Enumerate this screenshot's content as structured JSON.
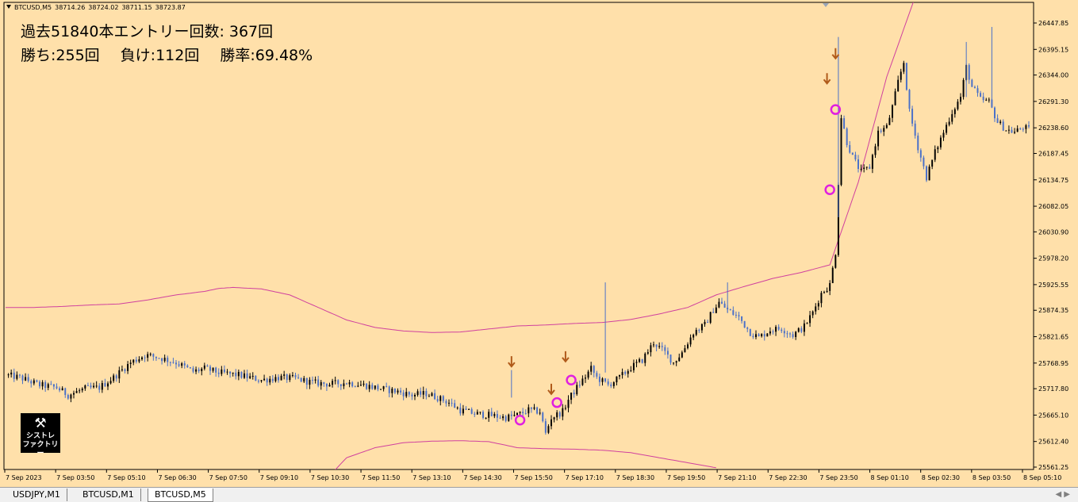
{
  "window": {
    "symbol": "BTCUSD,M5",
    "quotes": [
      "38714.26",
      "38724.02",
      "38711.15",
      "38723.87"
    ]
  },
  "stats": {
    "line1": "過去51840本エントリー回数: 367回",
    "wins": "勝ち:255回",
    "losses": "負け:112回",
    "win_rate": "勝率:69.48%"
  },
  "logo": {
    "line1": "シストレ",
    "line2": "ファクトリー",
    "icon": "wrench-screwdriver-icon"
  },
  "colors": {
    "background": "#ffe0aa",
    "bull_candle": "#000000",
    "bear_candle": "#4a70c8",
    "band": "#d0409e",
    "signal_circle": "#e020e0",
    "signal_arrow": "#b05a1a"
  },
  "tabs": [
    {
      "label": "USDJPY,M1",
      "active": false
    },
    {
      "label": "BTCUSD,M1",
      "active": false
    },
    {
      "label": "BTCUSD,M5",
      "active": true
    }
  ],
  "chart_data": {
    "type": "candlestick",
    "ylim": [
      25540,
      26480
    ],
    "y_ticks": [
      "26447.85",
      "26395.15",
      "26344.00",
      "26291.30",
      "26238.60",
      "26187.45",
      "26134.75",
      "26082.05",
      "26030.90",
      "25978.20",
      "25925.55",
      "25874.35",
      "25821.65",
      "25768.95",
      "25717.80",
      "25665.10",
      "25612.40",
      "25561.25"
    ],
    "x_ticks": [
      "7 Sep 2023",
      "7 Sep 03:50",
      "7 Sep 05:10",
      "7 Sep 06:30",
      "7 Sep 07:50",
      "7 Sep 09:10",
      "7 Sep 10:30",
      "7 Sep 11:50",
      "7 Sep 13:10",
      "7 Sep 14:30",
      "7 Sep 15:50",
      "7 Sep 17:10",
      "7 Sep 18:30",
      "7 Sep 19:50",
      "7 Sep 21:10",
      "7 Sep 22:30",
      "7 Sep 23:50",
      "8 Sep 01:10",
      "8 Sep 02:30",
      "8 Sep 03:50",
      "8 Sep 05:10"
    ],
    "close_path": [
      [
        0,
        25745
      ],
      [
        5,
        25740
      ],
      [
        12,
        25725
      ],
      [
        18,
        25720
      ],
      [
        22,
        25705
      ],
      [
        28,
        25718
      ],
      [
        33,
        25720
      ],
      [
        38,
        25740
      ],
      [
        44,
        25770
      ],
      [
        49,
        25785
      ],
      [
        54,
        25780
      ],
      [
        60,
        25770
      ],
      [
        66,
        25752
      ],
      [
        70,
        25758
      ],
      [
        75,
        25750
      ],
      [
        82,
        25745
      ],
      [
        90,
        25735
      ],
      [
        96,
        25740
      ],
      [
        102,
        25738
      ],
      [
        108,
        25730
      ],
      [
        114,
        25727
      ],
      [
        120,
        25730
      ],
      [
        126,
        25725
      ],
      [
        132,
        25718
      ],
      [
        138,
        25712
      ],
      [
        143,
        25705
      ],
      [
        148,
        25708
      ],
      [
        152,
        25700
      ],
      [
        156,
        25690
      ],
      [
        160,
        25675
      ],
      [
        165,
        25668
      ],
      [
        170,
        25665
      ],
      [
        176,
        25660
      ],
      [
        180,
        25665
      ],
      [
        184,
        25675
      ],
      [
        188,
        25672
      ],
      [
        190,
        25628
      ],
      [
        192,
        25660
      ],
      [
        196,
        25672
      ],
      [
        198,
        25696
      ],
      [
        200,
        25712
      ],
      [
        202,
        25728
      ],
      [
        204,
        25742
      ],
      [
        206,
        25758
      ],
      [
        208,
        25740
      ],
      [
        212,
        25725
      ],
      [
        216,
        25740
      ],
      [
        220,
        25760
      ],
      [
        224,
        25775
      ],
      [
        228,
        25810
      ],
      [
        232,
        25790
      ],
      [
        235,
        25770
      ],
      [
        238,
        25790
      ],
      [
        242,
        25830
      ],
      [
        246,
        25845
      ],
      [
        249,
        25875
      ],
      [
        251,
        25890
      ],
      [
        254,
        25875
      ],
      [
        258,
        25860
      ],
      [
        262,
        25830
      ],
      [
        265,
        25820
      ],
      [
        269,
        25835
      ],
      [
        273,
        25838
      ],
      [
        277,
        25825
      ],
      [
        281,
        25842
      ],
      [
        284,
        25870
      ],
      [
        287,
        25908
      ],
      [
        290,
        25925
      ],
      [
        292,
        25990
      ],
      [
        293,
        26130
      ],
      [
        294,
        26260
      ],
      [
        296,
        26210
      ],
      [
        298,
        26180
      ],
      [
        301,
        26150
      ],
      [
        304,
        26160
      ],
      [
        307,
        26230
      ],
      [
        310,
        26240
      ],
      [
        312,
        26280
      ],
      [
        314,
        26330
      ],
      [
        316,
        26370
      ],
      [
        318,
        26270
      ],
      [
        321,
        26200
      ],
      [
        324,
        26140
      ],
      [
        327,
        26190
      ],
      [
        330,
        26230
      ],
      [
        333,
        26270
      ],
      [
        336,
        26300
      ],
      [
        338,
        26360
      ],
      [
        340,
        26320
      ],
      [
        343,
        26295
      ],
      [
        346,
        26290
      ],
      [
        349,
        26250
      ],
      [
        352,
        26235
      ],
      [
        355,
        26230
      ],
      [
        358,
        26240
      ],
      [
        360,
        26235
      ]
    ],
    "upper_band": [
      [
        0,
        25880
      ],
      [
        10,
        25880
      ],
      [
        20,
        25882
      ],
      [
        30,
        25885
      ],
      [
        40,
        25887
      ],
      [
        50,
        25895
      ],
      [
        60,
        25905
      ],
      [
        70,
        25912
      ],
      [
        75,
        25918
      ],
      [
        80,
        25920
      ],
      [
        90,
        25917
      ],
      [
        100,
        25905
      ],
      [
        110,
        25880
      ],
      [
        120,
        25855
      ],
      [
        130,
        25840
      ],
      [
        140,
        25833
      ],
      [
        150,
        25830
      ],
      [
        160,
        25831
      ],
      [
        170,
        25837
      ],
      [
        180,
        25843
      ],
      [
        190,
        25845
      ],
      [
        200,
        25848
      ],
      [
        210,
        25850
      ],
      [
        220,
        25856
      ],
      [
        230,
        25867
      ],
      [
        240,
        25880
      ],
      [
        250,
        25905
      ],
      [
        260,
        25922
      ],
      [
        270,
        25938
      ],
      [
        280,
        25950
      ],
      [
        290,
        25965
      ],
      [
        300,
        26130
      ],
      [
        310,
        26340
      ],
      [
        320,
        26500
      ]
    ],
    "lower_band": [
      [
        110,
        25520
      ],
      [
        120,
        25580
      ],
      [
        130,
        25600
      ],
      [
        140,
        25610
      ],
      [
        150,
        25613
      ],
      [
        160,
        25614
      ],
      [
        170,
        25612
      ],
      [
        176,
        25605
      ],
      [
        180,
        25600
      ],
      [
        190,
        25598
      ],
      [
        200,
        25597
      ],
      [
        210,
        25595
      ],
      [
        220,
        25590
      ],
      [
        230,
        25580
      ],
      [
        240,
        25570
      ],
      [
        250,
        25560
      ]
    ],
    "signal_circles": [
      [
        181,
        25655
      ],
      [
        194,
        25690
      ],
      [
        199,
        25735
      ],
      [
        290,
        26115
      ],
      [
        292,
        26275
      ]
    ],
    "signal_arrows": [
      [
        178,
        25770
      ],
      [
        192,
        25715
      ],
      [
        197,
        25780
      ],
      [
        289,
        26335
      ],
      [
        292,
        26385
      ]
    ]
  }
}
